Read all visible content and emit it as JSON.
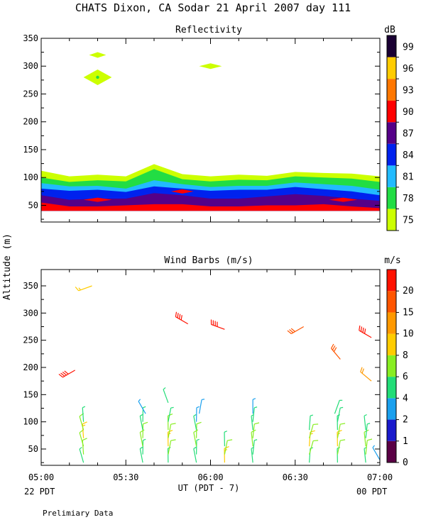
{
  "figure": {
    "title": "CHATS Dixon, CA  Sodar  21 April 2007  day 111",
    "shared_ylabel": "Altitude (m)",
    "xlabel": "UT (PDT - 7)",
    "left_time_note": "22 PDT",
    "right_time_note": "00 PDT",
    "footnote": "Prelimiary Data"
  },
  "chart_data": [
    {
      "id": "reflectivity",
      "type": "heatmap",
      "title": "Reflectivity",
      "colorbar_label": "dB",
      "x_ticks": [
        "05:00",
        "05:30",
        "06:00",
        "06:30",
        "07:00"
      ],
      "x_range_minutes": [
        0,
        120
      ],
      "ylim": [
        20,
        350
      ],
      "y_ticks": [
        50,
        100,
        150,
        200,
        250,
        300,
        350
      ],
      "levels": [
        75,
        78,
        81,
        84,
        87,
        90,
        93,
        96,
        99
      ],
      "level_colors": [
        "#ccff00",
        "#22dd44",
        "#22bbff",
        "#0022ee",
        "#550088",
        "#ff0000",
        "#ff7700",
        "#ffcc00",
        "#1a0033"
      ],
      "time_minutes": [
        0,
        10,
        20,
        30,
        40,
        50,
        60,
        70,
        80,
        90,
        100,
        110,
        120
      ],
      "band_tops": [
        [
          112,
          102,
          105,
          102,
          124,
          106,
          102,
          105,
          103,
          110,
          108,
          107,
          102
        ],
        [
          100,
          92,
          95,
          93,
          115,
          97,
          93,
          96,
          95,
          102,
          100,
          98,
          92
        ],
        [
          90,
          84,
          85,
          80,
          95,
          88,
          83,
          85,
          85,
          91,
          88,
          85,
          78
        ],
        [
          80,
          76,
          78,
          74,
          84,
          80,
          76,
          78,
          78,
          83,
          79,
          75,
          68
        ],
        [
          68,
          60,
          62,
          62,
          72,
          68,
          62,
          62,
          66,
          70,
          67,
          62,
          58
        ],
        [
          55,
          48,
          48,
          50,
          52,
          52,
          48,
          48,
          50,
          50,
          52,
          48,
          45
        ]
      ],
      "red_patches": [
        {
          "t": [
            15,
            25
          ],
          "z": 60
        },
        {
          "t": [
            46,
            54
          ],
          "z": 75
        },
        {
          "t": [
            102,
            112
          ],
          "z": 60
        }
      ],
      "echo_patches": [
        {
          "t": [
            17,
            23
          ],
          "z": 320
        },
        {
          "t": [
            15,
            25
          ],
          "z": 280
        },
        {
          "t": [
            56,
            64
          ],
          "z": 300
        }
      ]
    },
    {
      "id": "wind_barbs",
      "type": "scatter",
      "title": "Wind Barbs (m/s)",
      "colorbar_label": "m/s",
      "x_ticks": [
        "05:00",
        "05:30",
        "06:00",
        "06:30",
        "07:00"
      ],
      "x_range_minutes": [
        0,
        120
      ],
      "ylim": [
        20,
        380
      ],
      "y_ticks": [
        50,
        100,
        150,
        200,
        250,
        300,
        350
      ],
      "speed_ticks": [
        0,
        1,
        2,
        4,
        6,
        8,
        10,
        15,
        20
      ],
      "speed_colors": [
        "#5a0045",
        "#1a1acc",
        "#1aa0ee",
        "#22dd77",
        "#88ee22",
        "#ffcc00",
        "#ff9900",
        "#ff5500",
        "#ff1100"
      ],
      "barbs": [
        {
          "t": 18,
          "z": 350,
          "speed": 8,
          "dir": 250
        },
        {
          "t": 12,
          "z": 195,
          "speed": 20,
          "dir": 240
        },
        {
          "t": 52,
          "z": 280,
          "speed": 20,
          "dir": 300
        },
        {
          "t": 65,
          "z": 270,
          "speed": 20,
          "dir": 290
        },
        {
          "t": 93,
          "z": 275,
          "speed": 15,
          "dir": 240
        },
        {
          "t": 117,
          "z": 255,
          "speed": 20,
          "dir": 300
        },
        {
          "t": 106,
          "z": 215,
          "speed": 15,
          "dir": 320
        },
        {
          "t": 117,
          "z": 175,
          "speed": 10,
          "dir": 310
        },
        {
          "t": 37,
          "z": 115,
          "speed": 2,
          "dir": 330
        },
        {
          "t": 45,
          "z": 135,
          "speed": 4,
          "dir": 340
        },
        {
          "t": 56,
          "z": 115,
          "speed": 2,
          "dir": 10
        },
        {
          "t": 75,
          "z": 115,
          "speed": 2,
          "dir": 0
        },
        {
          "t": 104,
          "z": 115,
          "speed": 4,
          "dir": 20
        },
        {
          "t": 120,
          "z": 30,
          "speed": 2,
          "dir": 330
        }
      ],
      "columns": [
        {
          "t": 15,
          "profile": [
            4,
            6,
            6,
            8,
            6,
            4
          ],
          "dir": 350
        },
        {
          "t": 36,
          "profile": [
            4,
            4,
            6,
            6,
            4,
            4
          ],
          "dir": 355
        },
        {
          "t": 45,
          "profile": [
            4,
            6,
            8,
            6,
            6,
            4
          ],
          "dir": 5
        },
        {
          "t": 55,
          "profile": [
            4,
            4,
            6,
            6,
            4,
            2
          ],
          "dir": 355
        },
        {
          "t": 65,
          "profile": [
            8,
            6,
            4
          ],
          "dir": 5
        },
        {
          "t": 75,
          "profile": [
            4,
            4,
            6,
            6,
            4,
            4
          ],
          "dir": 0
        },
        {
          "t": 95,
          "profile": [
            4,
            6,
            8,
            6,
            4
          ],
          "dir": 10
        },
        {
          "t": 105,
          "profile": [
            4,
            6,
            8,
            6,
            4,
            4
          ],
          "dir": 5
        },
        {
          "t": 115,
          "profile": [
            4,
            6,
            6,
            4,
            4
          ],
          "dir": 0
        }
      ]
    }
  ]
}
